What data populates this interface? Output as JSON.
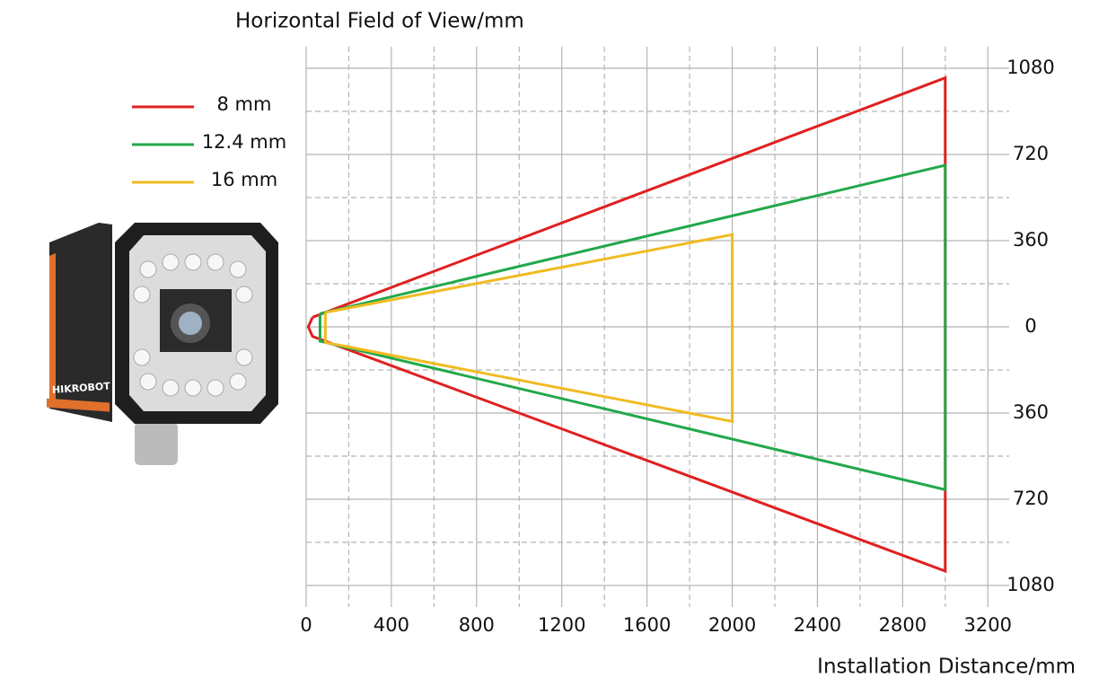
{
  "chart_data": {
    "type": "line",
    "title": "Horizontal Field of View/mm",
    "x_label": "Installation Distance/mm",
    "xlim": [
      0,
      3300
    ],
    "xticks": [
      0,
      400,
      800,
      1200,
      1600,
      2000,
      2400,
      2800,
      3200
    ],
    "ylim": [
      -1170,
      1170
    ],
    "yticks": [
      {
        "value": 1080,
        "label": "1080"
      },
      720,
      360,
      0,
      {
        "value": -360,
        "label": "360"
      },
      {
        "value": -720,
        "label": "720"
      },
      {
        "value": -1080,
        "label": "1080"
      }
    ],
    "grid": true,
    "series": [
      {
        "name": "8 mm",
        "color": "#e02020",
        "x": [
          30,
          3000,
          3000,
          30,
          10,
          30
        ],
        "values": [
          40,
          1040,
          -1020,
          -40,
          0,
          40
        ]
      },
      {
        "name": "12.4 mm",
        "color": "#22a84a",
        "x": [
          65,
          3000,
          3000,
          65,
          65
        ],
        "values": [
          55,
          675,
          -680,
          -60,
          55
        ]
      },
      {
        "name": "16 mm",
        "color": "#f0bb22",
        "x": [
          90,
          2000,
          2000,
          90,
          90
        ],
        "values": [
          60,
          385,
          -395,
          -65,
          60
        ]
      }
    ]
  }
}
